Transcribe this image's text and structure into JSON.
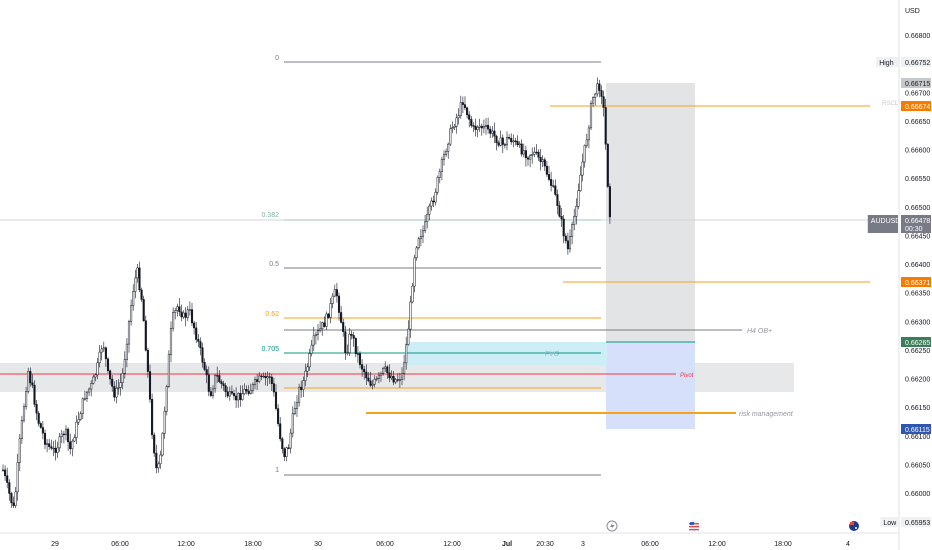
{
  "symbol": "AUDUSD",
  "currency": "USD",
  "chart_data": {
    "type": "candlestick",
    "y_ticks": [
      "0.66800",
      "0.66750",
      "0.66700",
      "0.66650",
      "0.66600",
      "0.66550",
      "0.66500",
      "0.66450",
      "0.66400",
      "0.66350",
      "0.66300",
      "0.66250",
      "0.66200",
      "0.66150",
      "0.66100",
      "0.66050",
      "0.66000"
    ],
    "x_ticks": [
      "29",
      "06:00",
      "12:00",
      "18:00",
      "30",
      "06:00",
      "12:00",
      "Jul",
      "20:30",
      "3",
      "06:00",
      "12:00",
      "18:00",
      "4"
    ],
    "price_labels": [
      {
        "text": "High",
        "value": "0.66752",
        "style": "plain"
      },
      {
        "text": "",
        "value": "0.66715",
        "style": "grey"
      },
      {
        "text": "RSCL",
        "value": "0.66674",
        "style": "orange"
      },
      {
        "text": "AUDUSD",
        "value": "0.66478",
        "sub": "00:30",
        "style": "dark"
      },
      {
        "text": "",
        "value": "0.66371",
        "style": "orange"
      },
      {
        "text": "",
        "value": "0.66265",
        "style": "green"
      },
      {
        "text": "",
        "value": "0.66115",
        "style": "blue"
      },
      {
        "text": "Low",
        "value": "0.65953",
        "style": "plain"
      }
    ],
    "fib_levels": [
      {
        "label": "0",
        "price": 0.66715,
        "color": "#787b86"
      },
      {
        "label": "0.382",
        "price": 0.66478,
        "color": "#7fb8a4"
      },
      {
        "label": "0.5",
        "price": 0.66405,
        "color": "#787b86"
      },
      {
        "label": "0.62",
        "price": 0.66305,
        "color": "#f7a21b"
      },
      {
        "label": "0.705",
        "price": 0.66253,
        "color": "#089981"
      },
      {
        "label": "1",
        "price": 0.66035,
        "color": "#787b86"
      }
    ],
    "annotations": [
      {
        "text": "H4 OB+",
        "price": 0.6629,
        "color": "#9598a1"
      },
      {
        "text": "FVG",
        "price": 0.6624,
        "color": "#8fb9d6"
      },
      {
        "text": "Pivot",
        "price": 0.66205,
        "color": "#f23645"
      },
      {
        "text": "risk management",
        "price": 0.66148,
        "color": "#9598a1"
      }
    ],
    "series": [
      {
        "name": "AUDUSD",
        "approx_range": [
          0.65953,
          0.66752
        ],
        "note": "~300 bars, 30-min"
      }
    ]
  }
}
